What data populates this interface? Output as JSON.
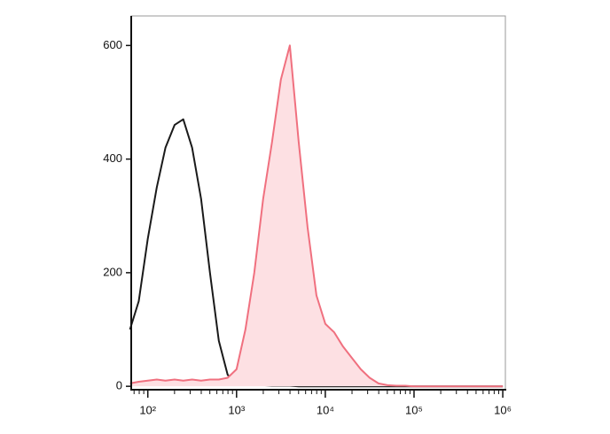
{
  "chart_data": {
    "type": "line",
    "xscale": "log",
    "x": [
      63,
      79,
      100,
      126,
      158,
      200,
      251,
      316,
      398,
      501,
      631,
      794,
      1000,
      1259,
      1585,
      1995,
      2512,
      3162,
      3981,
      5012,
      6310,
      7943,
      10000,
      12589,
      15849,
      19953,
      25119,
      31623,
      39811,
      50119,
      63096,
      79433,
      100000,
      125893,
      158489,
      199526,
      251189,
      316228,
      398107,
      501187,
      630957,
      794328,
      1000000
    ],
    "series": [
      {
        "color": "#1a1a1a",
        "fill": false,
        "values": [
          100,
          150,
          260,
          350,
          420,
          460,
          470,
          420,
          330,
          200,
          80,
          20,
          8,
          5,
          3,
          2,
          1,
          1,
          1,
          0,
          0,
          0,
          0,
          0,
          0,
          0,
          0,
          0,
          0,
          0,
          0,
          0,
          0,
          0,
          0,
          0,
          0,
          0,
          0,
          0,
          0,
          0,
          0
        ]
      },
      {
        "color": "#f0707f",
        "fill": "#fde0e3",
        "values": [
          5,
          8,
          10,
          12,
          10,
          12,
          10,
          12,
          10,
          12,
          12,
          15,
          30,
          100,
          200,
          330,
          430,
          540,
          600,
          430,
          280,
          160,
          110,
          95,
          70,
          50,
          30,
          15,
          5,
          2,
          1,
          1,
          0,
          0,
          0,
          0,
          0,
          0,
          0,
          0,
          0,
          0,
          0
        ]
      }
    ],
    "xlim": [
      65,
      1070000
    ],
    "xticks": [
      {
        "value": 100,
        "label": "10²"
      },
      {
        "value": 1000,
        "label": "10³"
      },
      {
        "value": 10000,
        "label": "10⁴"
      },
      {
        "value": 100000,
        "label": "10⁵"
      },
      {
        "value": 1000000,
        "label": "10⁶"
      }
    ],
    "xminorticks": [
      70,
      80,
      90,
      200,
      300,
      400,
      500,
      600,
      700,
      800,
      900,
      2000,
      3000,
      4000,
      5000,
      6000,
      7000,
      8000,
      9000,
      20000,
      30000,
      40000,
      50000,
      60000,
      70000,
      80000,
      90000,
      200000,
      300000,
      400000,
      500000,
      600000,
      700000,
      800000,
      900000
    ],
    "ylim": [
      -6,
      652
    ],
    "yticks": [
      0,
      200,
      400,
      600
    ]
  }
}
